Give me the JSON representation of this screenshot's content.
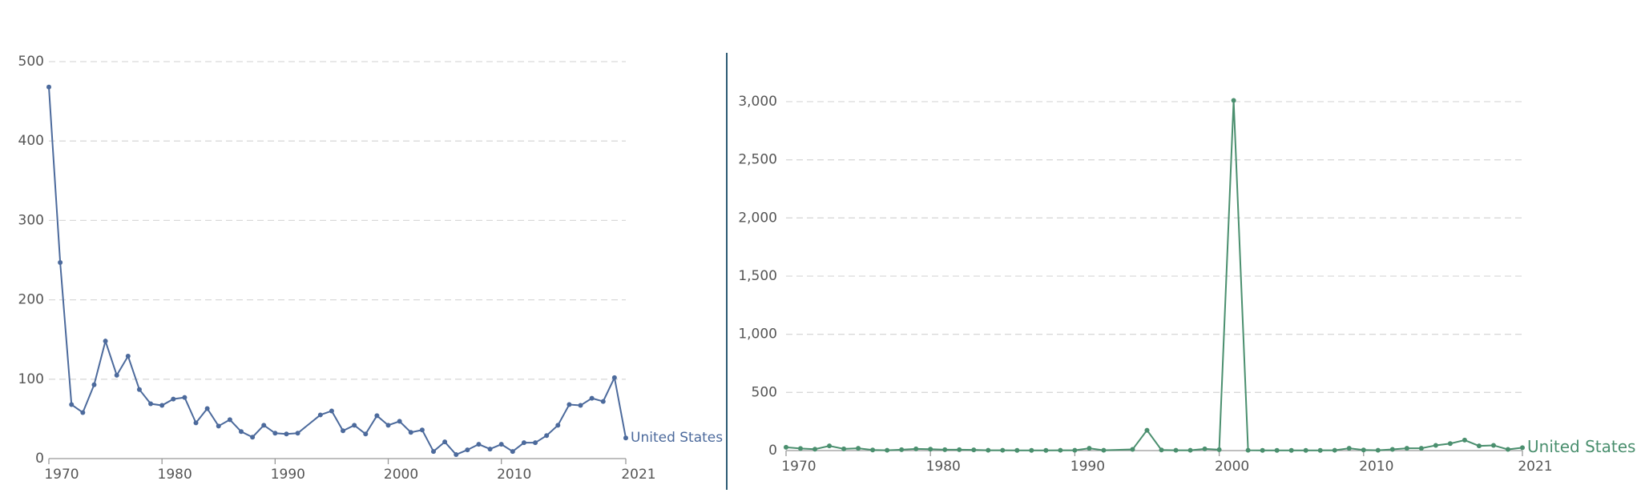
{
  "chart_data": [
    {
      "type": "line",
      "x": [
        1970,
        1971,
        1972,
        1973,
        1974,
        1975,
        1976,
        1977,
        1978,
        1979,
        1980,
        1981,
        1982,
        1983,
        1984,
        1985,
        1986,
        1987,
        1988,
        1989,
        1990,
        1991,
        1992,
        1994,
        1995,
        1996,
        1997,
        1998,
        1999,
        2000,
        2001,
        2002,
        2003,
        2004,
        2005,
        2006,
        2007,
        2008,
        2009,
        2010,
        2011,
        2012,
        2013,
        2014,
        2015,
        2016,
        2017,
        2018,
        2019,
        2020,
        2021
      ],
      "series": [
        {
          "name": "United States",
          "color": "#4c6a9c",
          "values": [
            468,
            247,
            68,
            58,
            93,
            148,
            105,
            129,
            87,
            69,
            67,
            75,
            77,
            45,
            63,
            41,
            49,
            34,
            27,
            42,
            32,
            31,
            32,
            55,
            60,
            35,
            42,
            31,
            54,
            42,
            47,
            33,
            36,
            9,
            21,
            5,
            11,
            18,
            12,
            18,
            9,
            20,
            20,
            29,
            42,
            68,
            67,
            76,
            72,
            102,
            26
          ]
        }
      ],
      "xlim": [
        1970,
        2021
      ],
      "xticks": [
        1970,
        1980,
        1990,
        2000,
        2010,
        2021
      ],
      "ylim": [
        0,
        500
      ],
      "yticks": [
        0,
        100,
        200,
        300,
        400,
        500
      ],
      "grid": true
    },
    {
      "type": "line",
      "x": [
        1970,
        1971,
        1972,
        1973,
        1974,
        1975,
        1976,
        1977,
        1978,
        1979,
        1980,
        1981,
        1982,
        1983,
        1984,
        1985,
        1986,
        1987,
        1988,
        1989,
        1990,
        1991,
        1992,
        1994,
        1995,
        1996,
        1997,
        1998,
        1999,
        2000,
        2001,
        2002,
        2003,
        2004,
        2005,
        2006,
        2007,
        2008,
        2009,
        2010,
        2011,
        2012,
        2013,
        2014,
        2015,
        2016,
        2017,
        2018,
        2019,
        2020,
        2021
      ],
      "series": [
        {
          "name": "United States",
          "color": "#4a8f6e",
          "values": [
            28,
            18,
            12,
            40,
            15,
            20,
            5,
            3,
            8,
            15,
            12,
            8,
            8,
            6,
            3,
            3,
            2,
            2,
            2,
            3,
            3,
            20,
            3,
            10,
            175,
            5,
            3,
            3,
            15,
            8,
            3010,
            3,
            2,
            2,
            2,
            2,
            2,
            3,
            20,
            5,
            3,
            10,
            20,
            20,
            45,
            60,
            90,
            40,
            45,
            10,
            25
          ]
        }
      ],
      "xlim": [
        1970,
        2021
      ],
      "xticks": [
        1970,
        1980,
        1990,
        2000,
        2010,
        2021
      ],
      "ylim": [
        0,
        3000
      ],
      "yticks": [
        0,
        500,
        {
          "value": 1000,
          "label": "1,000"
        },
        {
          "value": 1500,
          "label": "1,500"
        },
        {
          "value": 2000,
          "label": "2,000"
        },
        {
          "value": 2500,
          "label": "2,500"
        },
        {
          "value": 3000,
          "label": "3,000"
        }
      ],
      "grid": true
    }
  ]
}
